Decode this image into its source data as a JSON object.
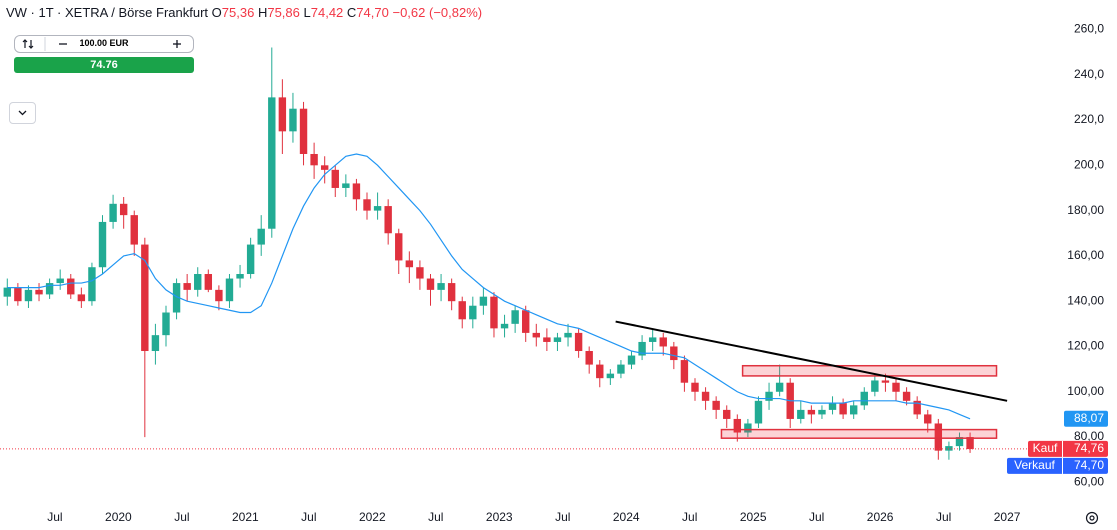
{
  "header": {
    "symbol": "VW · 1T · XETRA / Börse Frankfurt",
    "ohlc": [
      {
        "key": "O",
        "value": "75,36"
      },
      {
        "key": "H",
        "value": "75,86"
      },
      {
        "key": "L",
        "value": "74,42"
      },
      {
        "key": "C",
        "value": "74,70"
      }
    ],
    "change": "−0,62 (−0,82%)"
  },
  "widget": {
    "amount": "100.00 EUR",
    "price": "74.76"
  },
  "chart_data": {
    "type": "candlestick",
    "up_color": "#22ab94",
    "down_color": "#e0313e",
    "grid": false,
    "x": [
      "2019-02",
      "2019-03",
      "2019-04",
      "2019-05",
      "2019-06",
      "2019-07",
      "2019-08",
      "2019-09",
      "2019-10",
      "2019-11",
      "2019-12",
      "2020-01",
      "2020-02",
      "2020-03",
      "2020-04",
      "2020-05",
      "2020-06",
      "2020-07",
      "2020-08",
      "2020-09",
      "2020-10",
      "2020-11",
      "2020-12",
      "2021-01",
      "2021-02",
      "2021-03",
      "2021-04",
      "2021-05",
      "2021-06",
      "2021-07",
      "2021-08",
      "2021-09",
      "2021-10",
      "2021-11",
      "2021-12",
      "2022-01",
      "2022-02",
      "2022-03",
      "2022-04",
      "2022-05",
      "2022-06",
      "2022-07",
      "2022-08",
      "2022-09",
      "2022-10",
      "2022-11",
      "2022-12",
      "2023-01",
      "2023-02",
      "2023-03",
      "2023-04",
      "2023-05",
      "2023-06",
      "2023-07",
      "2023-08",
      "2023-09",
      "2023-10",
      "2023-11",
      "2023-12",
      "2024-01",
      "2024-02",
      "2024-03",
      "2024-04",
      "2024-05",
      "2024-06",
      "2024-07",
      "2024-08",
      "2024-09",
      "2024-10",
      "2024-11",
      "2024-12",
      "2025-01",
      "2025-02",
      "2025-03",
      "2025-04",
      "2025-05",
      "2025-06",
      "2025-07",
      "2025-08",
      "2025-09",
      "2025-10",
      "2025-11",
      "2025-12",
      "2026-01",
      "2026-02",
      "2026-03",
      "2026-04",
      "2026-05",
      "2026-06",
      "2026-07",
      "2026-08",
      "2026-09"
    ],
    "open": [
      142,
      146,
      140,
      145,
      143,
      148,
      150,
      143,
      140,
      155,
      175,
      183,
      178,
      165,
      118,
      125,
      135,
      148,
      145,
      152,
      145,
      140,
      150,
      152,
      165,
      172,
      230,
      215,
      225,
      205,
      200,
      198,
      190,
      192,
      185,
      180,
      182,
      170,
      158,
      155,
      150,
      145,
      148,
      140,
      132,
      138,
      142,
      128,
      130,
      136,
      126,
      124,
      122,
      124,
      126,
      118,
      112,
      106,
      108,
      112,
      116,
      122,
      124,
      120,
      114,
      104,
      100,
      96,
      92,
      88,
      82,
      86,
      96,
      100,
      104,
      88,
      92,
      90,
      92,
      95,
      90,
      94,
      100,
      105,
      104,
      100,
      96,
      90,
      86,
      74,
      76,
      80
    ],
    "high": [
      150,
      148,
      147,
      148,
      150,
      154,
      152,
      146,
      157,
      178,
      187,
      186,
      180,
      168,
      130,
      138,
      150,
      152,
      155,
      154,
      147,
      152,
      156,
      168,
      178,
      252,
      238,
      232,
      228,
      210,
      204,
      200,
      196,
      194,
      188,
      188,
      185,
      172,
      162,
      158,
      152,
      152,
      150,
      142,
      142,
      146,
      144,
      134,
      138,
      138,
      130,
      128,
      126,
      130,
      128,
      120,
      114,
      110,
      114,
      118,
      125,
      128,
      126,
      122,
      116,
      106,
      102,
      98,
      94,
      90,
      88,
      98,
      104,
      112,
      106,
      96,
      94,
      94,
      98,
      97,
      96,
      102,
      108,
      108,
      106,
      102,
      98,
      92,
      88,
      78,
      82,
      82
    ],
    "low": [
      138,
      138,
      137,
      140,
      141,
      145,
      141,
      137,
      138,
      152,
      172,
      172,
      160,
      80,
      112,
      120,
      132,
      140,
      142,
      144,
      136,
      137,
      146,
      150,
      160,
      168,
      205,
      210,
      200,
      194,
      192,
      186,
      186,
      180,
      176,
      176,
      165,
      152,
      148,
      145,
      138,
      140,
      136,
      128,
      128,
      134,
      124,
      124,
      126,
      122,
      120,
      118,
      118,
      120,
      115,
      108,
      102,
      103,
      106,
      110,
      114,
      118,
      116,
      110,
      100,
      96,
      92,
      88,
      84,
      78,
      80,
      84,
      92,
      98,
      84,
      86,
      86,
      88,
      90,
      88,
      88,
      92,
      98,
      100,
      96,
      94,
      88,
      82,
      70,
      70,
      74,
      73
    ],
    "close": [
      146,
      140,
      145,
      143,
      148,
      150,
      143,
      140,
      155,
      175,
      183,
      178,
      165,
      118,
      125,
      135,
      148,
      145,
      152,
      145,
      140,
      150,
      152,
      165,
      172,
      230,
      215,
      225,
      205,
      200,
      198,
      190,
      192,
      185,
      180,
      182,
      170,
      158,
      155,
      150,
      145,
      148,
      140,
      132,
      138,
      142,
      128,
      130,
      136,
      126,
      124,
      122,
      124,
      126,
      118,
      112,
      106,
      108,
      112,
      116,
      122,
      124,
      120,
      114,
      104,
      100,
      96,
      92,
      88,
      82,
      86,
      96,
      100,
      104,
      88,
      92,
      90,
      92,
      95,
      90,
      94,
      100,
      105,
      104,
      100,
      96,
      90,
      86,
      74,
      76,
      80,
      74.7
    ],
    "overlays": [
      {
        "color": "#2196f3",
        "label": "88,07",
        "values": [
          146,
          146,
          146,
          146,
          147,
          147,
          148,
          148,
          149,
          152,
          156,
          160,
          161,
          158,
          150,
          145,
          142,
          140,
          139,
          138,
          137,
          136,
          135,
          135,
          138,
          148,
          160,
          172,
          182,
          190,
          196,
          200,
          204,
          205,
          204,
          200,
          195,
          190,
          185,
          180,
          174,
          167,
          160,
          154,
          150,
          146,
          143,
          140,
          138,
          136,
          134,
          132,
          130,
          129,
          128,
          126,
          124,
          122,
          120,
          118,
          117,
          117,
          117,
          116,
          115,
          112,
          109,
          106,
          103,
          100,
          98,
          97,
          97,
          97,
          96,
          96,
          95,
          95,
          95,
          95,
          96,
          96,
          96,
          96,
          96,
          95,
          95,
          94,
          93,
          92,
          90,
          88.07
        ]
      }
    ],
    "price_labels": [
      {
        "name": "Kauf",
        "value": 74.76,
        "label": "74,76",
        "color": "#f23645"
      },
      {
        "name": "Verkauf",
        "value": 74.7,
        "label": "74,70",
        "color": "#2962ff"
      }
    ],
    "drawings": {
      "trendline": [
        {
          "x": "2023-12",
          "y": 131
        },
        {
          "x": "2027-01",
          "y": 96
        }
      ],
      "zones": [
        {
          "x": [
            "2024-12",
            "2026-12"
          ],
          "y": [
            107,
            111.5
          ]
        },
        {
          "x": [
            "2024-10",
            "2026-12"
          ],
          "y": [
            79.5,
            83.3
          ]
        }
      ]
    },
    "xlim": [
      "2019-02",
      "2027-06"
    ],
    "xticks": [
      {
        "value": "2019-07",
        "label": "Jul"
      },
      {
        "value": "2020-01",
        "label": "2020"
      },
      {
        "value": "2020-07",
        "label": "Jul"
      },
      {
        "value": "2021-01",
        "label": "2021"
      },
      {
        "value": "2021-07",
        "label": "Jul"
      },
      {
        "value": "2022-01",
        "label": "2022"
      },
      {
        "value": "2022-07",
        "label": "Jul"
      },
      {
        "value": "2023-01",
        "label": "2023"
      },
      {
        "value": "2023-07",
        "label": "Jul"
      },
      {
        "value": "2024-01",
        "label": "2024"
      },
      {
        "value": "2024-07",
        "label": "Jul"
      },
      {
        "value": "2025-01",
        "label": "2025"
      },
      {
        "value": "2025-07",
        "label": "Jul"
      },
      {
        "value": "2026-01",
        "label": "2026"
      },
      {
        "value": "2026-07",
        "label": "Jul"
      },
      {
        "value": "2027-01",
        "label": "2027"
      }
    ],
    "ylim": [
      50,
      273
    ],
    "yticks": [
      {
        "value": 60,
        "label": "60,00"
      },
      {
        "value": 80,
        "label": "80,00"
      },
      {
        "value": 100,
        "label": "100,00"
      },
      {
        "value": 120,
        "label": "120,00"
      },
      {
        "value": 140,
        "label": "140,00"
      },
      {
        "value": 160,
        "label": "160,00"
      },
      {
        "value": 180,
        "label": "180,00"
      },
      {
        "value": 200,
        "label": "200,0"
      },
      {
        "value": 220,
        "label": "220,0"
      },
      {
        "value": 240,
        "label": "240,0"
      },
      {
        "value": 260,
        "label": "260,0"
      }
    ]
  }
}
